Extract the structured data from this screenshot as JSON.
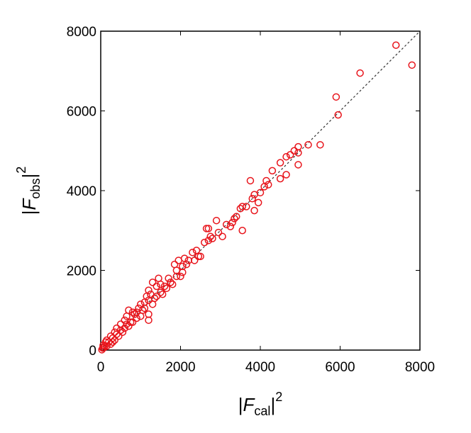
{
  "chart_data": {
    "type": "scatter",
    "xlabel": {
      "prefix": "|",
      "symbol": "F",
      "subscript": "cal",
      "suffix": "|",
      "superscript": "2"
    },
    "ylabel": {
      "prefix": "|",
      "symbol": "F",
      "subscript": "obs",
      "suffix": "|",
      "superscript": "2"
    },
    "xlim": [
      0,
      8000
    ],
    "ylim": [
      0,
      8000
    ],
    "xticks": [
      0,
      2000,
      4000,
      6000,
      8000
    ],
    "yticks": [
      0,
      2000,
      4000,
      6000,
      8000
    ],
    "marker": "open-circle",
    "series": [
      {
        "color": "#e8141b",
        "x": [
          7400,
          7800,
          6500,
          5900,
          5950,
          5500,
          5200,
          4950,
          4850,
          4750,
          4950,
          4650,
          4500,
          4950,
          4650,
          4500,
          4300,
          4150,
          4100,
          4000,
          3850,
          3800,
          3750,
          3950,
          3850,
          3650,
          3550,
          3500,
          3550,
          3300,
          3250,
          3350,
          3400,
          2900,
          3050,
          2950,
          2700,
          2650,
          2750,
          2700,
          2800,
          2500,
          2400,
          2350,
          2300,
          2100,
          2150,
          1950,
          2050,
          2050,
          2000,
          1900,
          1850,
          1800,
          1700,
          1650,
          1500,
          1450,
          1400,
          1300,
          1500,
          1550,
          1250,
          1200,
          1150,
          1100,
          1300,
          1200,
          1200,
          1050,
          1000,
          950,
          900,
          850,
          800,
          700,
          650,
          750,
          600,
          600,
          500,
          550,
          400,
          450,
          350,
          300,
          250,
          200,
          150,
          100,
          50,
          150,
          300,
          500,
          700,
          900,
          1100,
          1000,
          800,
          1350,
          1600,
          1750,
          1900,
          2200,
          2600,
          60,
          30,
          400,
          650,
          1200,
          1400,
          2450,
          3150,
          4200,
          250,
          120,
          350,
          80
        ],
        "values": [
          7650,
          7150,
          6950,
          6350,
          5900,
          5150,
          5150,
          5100,
          5000,
          4900,
          4950,
          4850,
          4700,
          4650,
          4400,
          4300,
          4500,
          4250,
          4100,
          3950,
          3900,
          3800,
          4250,
          3700,
          3500,
          3600,
          3600,
          3550,
          3000,
          3200,
          3100,
          3300,
          3350,
          3250,
          2850,
          2950,
          3050,
          3050,
          2850,
          2750,
          2800,
          2350,
          2500,
          2250,
          2450,
          2300,
          2150,
          2250,
          2100,
          1950,
          1850,
          2000,
          2150,
          1650,
          1800,
          1550,
          1650,
          1800,
          1600,
          1700,
          1450,
          1400,
          1400,
          1500,
          1350,
          1200,
          1150,
          900,
          750,
          1000,
          1150,
          1050,
          800,
          900,
          950,
          1000,
          850,
          700,
          750,
          550,
          650,
          450,
          550,
          350,
          450,
          300,
          350,
          200,
          250,
          100,
          50,
          100,
          200,
          500,
          600,
          950,
          1050,
          850,
          700,
          1300,
          1600,
          1700,
          1850,
          2250,
          2700,
          120,
          10,
          400,
          650,
          1250,
          1350,
          2350,
          3150,
          4150,
          150,
          200,
          250,
          60
        ]
      }
    ]
  }
}
